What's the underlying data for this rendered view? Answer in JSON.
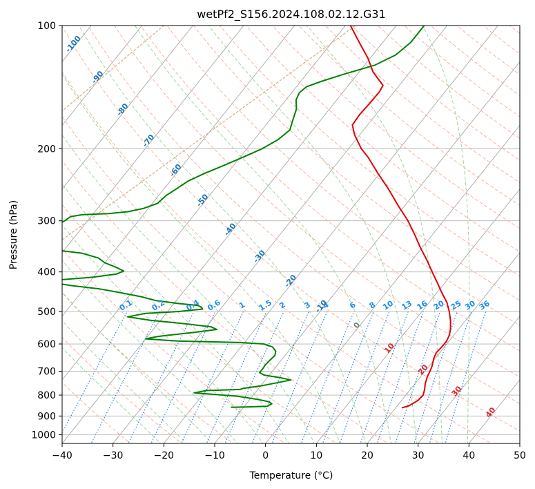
{
  "chart_data": {
    "type": "line",
    "subtype": "skew-t log-p diagram",
    "title": "wetPf2_S156.2024.108.02.12.G31",
    "xlabel": "Temperature (°C)",
    "ylabel": "Pressure (hPa)",
    "xlim": [
      -40,
      50
    ],
    "ylim": [
      1050,
      100
    ],
    "y_scale": "log",
    "x_ticks": [
      -40,
      -30,
      -20,
      -10,
      0,
      10,
      20,
      30,
      40,
      50
    ],
    "x_tick_labels": [
      "−40",
      "−30",
      "−20",
      "−10",
      "0",
      "10",
      "20",
      "30",
      "40",
      "50"
    ],
    "y_ticks": [
      100,
      200,
      300,
      400,
      500,
      600,
      700,
      800,
      900,
      1000
    ],
    "y_tick_labels": [
      "100",
      "200",
      "300",
      "400",
      "500",
      "600",
      "700",
      "800",
      "900",
      "1000"
    ],
    "grid": true,
    "series": [
      {
        "role": "temperature",
        "color": "#e00000",
        "points": [
          [
            860,
            21.2
          ],
          [
            850,
            22.3
          ],
          [
            825,
            23.2
          ],
          [
            800,
            23.4
          ],
          [
            775,
            22.8
          ],
          [
            750,
            22.0
          ],
          [
            720,
            21.3
          ],
          [
            700,
            21.0
          ],
          [
            680,
            20.6
          ],
          [
            650,
            19.7
          ],
          [
            630,
            19.3
          ],
          [
            610,
            19.5
          ],
          [
            590,
            19.5
          ],
          [
            570,
            19.1
          ],
          [
            550,
            18.3
          ],
          [
            525,
            17.0
          ],
          [
            500,
            15.4
          ],
          [
            475,
            13.5
          ],
          [
            450,
            11.0
          ],
          [
            425,
            8.5
          ],
          [
            400,
            5.8
          ],
          [
            375,
            3.0
          ],
          [
            350,
            -0.2
          ],
          [
            325,
            -3.4
          ],
          [
            300,
            -7.0
          ],
          [
            275,
            -11.4
          ],
          [
            250,
            -16.0
          ],
          [
            230,
            -20.3
          ],
          [
            210,
            -24.8
          ],
          [
            200,
            -27.5
          ],
          [
            185,
            -31.0
          ],
          [
            175,
            -33.0
          ],
          [
            165,
            -33.2
          ],
          [
            155,
            -33.0
          ],
          [
            145,
            -32.9
          ],
          [
            140,
            -33.2
          ],
          [
            130,
            -37.2
          ],
          [
            120,
            -40.5
          ],
          [
            110,
            -44.6
          ],
          [
            100,
            -49.0
          ]
        ]
      },
      {
        "role": "dewpoint",
        "color": "#008000",
        "points": [
          [
            857,
            -12.5
          ],
          [
            855,
            -9.0
          ],
          [
            852,
            -5.5
          ],
          [
            840,
            -5.0
          ],
          [
            830,
            -6.0
          ],
          [
            820,
            -8.4
          ],
          [
            805,
            -13.0
          ],
          [
            790,
            -22.0
          ],
          [
            780,
            -20.0
          ],
          [
            775,
            -13.5
          ],
          [
            770,
            -13.0
          ],
          [
            760,
            -10.0
          ],
          [
            745,
            -7.0
          ],
          [
            735,
            -5.0
          ],
          [
            725,
            -7.5
          ],
          [
            715,
            -11.0
          ],
          [
            705,
            -12.3
          ],
          [
            690,
            -12.3
          ],
          [
            675,
            -12.4
          ],
          [
            655,
            -12.2
          ],
          [
            640,
            -12.0
          ],
          [
            625,
            -12.5
          ],
          [
            610,
            -13.8
          ],
          [
            600,
            -16.0
          ],
          [
            595,
            -21.0
          ],
          [
            590,
            -33.5
          ],
          [
            583,
            -40.0
          ],
          [
            575,
            -38.0
          ],
          [
            562,
            -31.5
          ],
          [
            553,
            -27.5
          ],
          [
            545,
            -29.0
          ],
          [
            535,
            -35.0
          ],
          [
            525,
            -42.0
          ],
          [
            515,
            -47.0
          ],
          [
            505,
            -44.0
          ],
          [
            500,
            -38.0
          ],
          [
            493,
            -33.5
          ],
          [
            488,
            -34.0
          ],
          [
            483,
            -35.0
          ],
          [
            478,
            -39.0
          ],
          [
            470,
            -44.0
          ],
          [
            460,
            -47.5
          ],
          [
            450,
            -52.0
          ],
          [
            440,
            -57.0
          ],
          [
            432,
            -63.0
          ],
          [
            425,
            -67.0
          ],
          [
            418,
            -66.0
          ],
          [
            412,
            -60.0
          ],
          [
            405,
            -56.0
          ],
          [
            398,
            -55.0
          ],
          [
            390,
            -57.0
          ],
          [
            380,
            -60.0
          ],
          [
            370,
            -62.0
          ],
          [
            360,
            -66.0
          ],
          [
            350,
            -75.0
          ],
          [
            340,
            -80.0
          ],
          [
            330,
            -78.5
          ],
          [
            318,
            -76.5
          ],
          [
            305,
            -75.0
          ],
          [
            300,
            -74.5
          ],
          [
            293,
            -74.0
          ],
          [
            290,
            -72.0
          ],
          [
            288,
            -67.0
          ],
          [
            285,
            -63.5
          ],
          [
            280,
            -61.0
          ],
          [
            272,
            -59.0
          ],
          [
            260,
            -58.5
          ],
          [
            250,
            -57.5
          ],
          [
            240,
            -56.5
          ],
          [
            230,
            -54.5
          ],
          [
            220,
            -52.0
          ],
          [
            210,
            -49.5
          ],
          [
            200,
            -47.0
          ],
          [
            190,
            -45.3
          ],
          [
            180,
            -44.5
          ],
          [
            170,
            -45.5
          ],
          [
            160,
            -46.5
          ],
          [
            152,
            -48.0
          ],
          [
            146,
            -48.5
          ],
          [
            141,
            -48.0
          ],
          [
            137,
            -46.0
          ],
          [
            132,
            -43.0
          ],
          [
            125,
            -38.0
          ],
          [
            118,
            -35.5
          ],
          [
            110,
            -34.5
          ],
          [
            100,
            -34.5
          ]
        ]
      }
    ],
    "dry_adiabats_theta_c": [
      -30,
      -20,
      -10,
      0,
      10,
      20,
      30,
      40,
      50,
      60,
      70,
      80,
      90,
      100,
      110,
      120,
      130,
      140,
      150,
      160,
      170,
      180,
      190,
      200,
      210,
      220,
      230
    ],
    "moist_adiabats_start_c": [
      -20,
      -15,
      -10,
      -5,
      0,
      5,
      10,
      15,
      20,
      25,
      30,
      35,
      40
    ],
    "mixing_ratios_gkg": [
      {
        "value": 0.1,
        "label": "0.1"
      },
      {
        "value": 0.2,
        "label": "0.2"
      },
      {
        "value": 0.4,
        "label": "0.4"
      },
      {
        "value": 0.6,
        "label": "0.6"
      },
      {
        "value": 1,
        "label": "1"
      },
      {
        "value": 1.5,
        "label": "1.5"
      },
      {
        "value": 2,
        "label": "2"
      },
      {
        "value": 3,
        "label": "3"
      },
      {
        "value": 4,
        "label": "4"
      },
      {
        "value": 6,
        "label": "6"
      },
      {
        "value": 8,
        "label": "8"
      },
      {
        "value": 10,
        "label": "10"
      },
      {
        "value": 13,
        "label": "13"
      },
      {
        "value": 16,
        "label": "16"
      },
      {
        "value": 20,
        "label": "20"
      },
      {
        "value": 25,
        "label": "25"
      },
      {
        "value": 30,
        "label": "30"
      },
      {
        "value": 36,
        "label": "36"
      }
    ],
    "isotherm_labels": [
      {
        "t": -100,
        "p": 112,
        "label": "-100",
        "color": "#1f77b4"
      },
      {
        "t": -90,
        "p": 135,
        "label": "-90",
        "color": "#1f77b4"
      },
      {
        "t": -80,
        "p": 162,
        "label": "-80",
        "color": "#1f77b4"
      },
      {
        "t": -70,
        "p": 193,
        "label": "-70",
        "color": "#1f77b4"
      },
      {
        "t": -60,
        "p": 228,
        "label": "-60",
        "color": "#1f77b4"
      },
      {
        "t": -50,
        "p": 270,
        "label": "-50",
        "color": "#1f77b4"
      },
      {
        "t": -40,
        "p": 318,
        "label": "-40",
        "color": "#1f77b4"
      },
      {
        "t": -30,
        "p": 370,
        "label": "-30",
        "color": "#1f77b4"
      },
      {
        "t": -20,
        "p": 425,
        "label": "-20",
        "color": "#1f77b4"
      },
      {
        "t": -10,
        "p": 490,
        "label": "-10",
        "color": "#1f77b4"
      },
      {
        "t": 0,
        "p": 545,
        "label": "0",
        "color": "#808080"
      },
      {
        "t": 10,
        "p": 620,
        "label": "10",
        "color": "#d62728"
      },
      {
        "t": 20,
        "p": 700,
        "label": "20",
        "color": "#d62728"
      },
      {
        "t": 30,
        "p": 790,
        "label": "30",
        "color": "#d62728"
      },
      {
        "t": 40,
        "p": 890,
        "label": "40",
        "color": "#d62728"
      }
    ],
    "colors": {
      "temperature": "#e00000",
      "dewpoint": "#008000",
      "isotherms": "#a8a8a8",
      "isobars": "#b4b4b4",
      "dry_adiabats": "#f7b39d",
      "moist_adiabats": "#9fd49f",
      "mixing_ratio": "#1f77d4",
      "mixing_ratio_label": "#1e8cf0",
      "special_curve": "#d9b48a"
    }
  }
}
